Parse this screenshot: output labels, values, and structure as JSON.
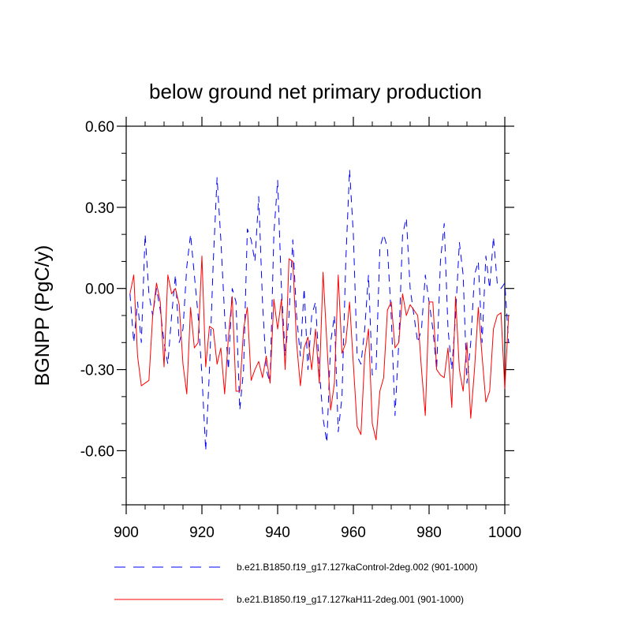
{
  "chart_data": {
    "type": "line",
    "title": "below ground net primary production",
    "xlabel": "",
    "ylabel": "BGNPP  (PgC/y)",
    "xlim": [
      900,
      1000
    ],
    "ylim": [
      -0.8,
      0.6
    ],
    "x_ticks": [
      900,
      920,
      940,
      960,
      980,
      1000
    ],
    "x_tick_labels": [
      "900",
      "920",
      "940",
      "960",
      "980",
      "1000"
    ],
    "y_ticks": [
      0.6,
      0.3,
      0.0,
      -0.3,
      -0.6
    ],
    "y_tick_labels": [
      "0.60",
      "0.30",
      "0.00",
      "-0.30",
      "-0.60"
    ],
    "x_start": 901,
    "series": [
      {
        "name": "b.e21.B1850.f19_g17.127kaControl-2deg.002 (901-1000)",
        "color": "#0000ff",
        "dash": "dashed",
        "values": [
          -0.02,
          -0.2,
          -0.05,
          -0.2,
          0.2,
          -0.02,
          -0.1,
          0.0,
          -0.08,
          -0.2,
          -0.28,
          -0.1,
          0.05,
          -0.2,
          -0.15,
          0.08,
          0.2,
          0.05,
          -0.1,
          -0.32,
          -0.6,
          -0.3,
          0.1,
          0.41,
          0.18,
          -0.1,
          -0.3,
          0.0,
          -0.05,
          -0.45,
          -0.3,
          0.22,
          0.18,
          0.1,
          0.34,
          -0.05,
          -0.3,
          -0.35,
          0.2,
          0.4,
          0.0,
          -0.25,
          -0.1,
          0.18,
          -0.1,
          -0.25,
          0.0,
          -0.3,
          -0.1,
          -0.05,
          -0.3,
          -0.48,
          -0.57,
          -0.2,
          -0.1,
          -0.53,
          -0.4,
          0.1,
          0.44,
          0.2,
          -0.25,
          -0.28,
          -0.15,
          0.05,
          -0.32,
          -0.3,
          0.15,
          0.2,
          0.15,
          -0.1,
          -0.47,
          -0.2,
          0.2,
          0.26,
          0.0,
          -0.1,
          -0.2,
          -0.15,
          0.05,
          -0.05,
          -0.15,
          -0.3,
          0.1,
          0.24,
          -0.15,
          -0.3,
          -0.1,
          0.17,
          0.05,
          -0.35,
          -0.2,
          0.05,
          0.1,
          -0.2,
          0.12,
          0.0,
          0.19,
          0.02,
          0.0,
          0.02,
          -0.2
        ]
      },
      {
        "name": "b.e21.B1850.f19_g17.127kaH11-2deg.001 (901-1000)",
        "color": "#ff0000",
        "dash": "solid",
        "values": [
          -0.02,
          0.05,
          -0.25,
          -0.36,
          -0.35,
          -0.34,
          -0.1,
          0.02,
          -0.05,
          -0.29,
          0.05,
          -0.02,
          0.0,
          -0.06,
          -0.28,
          -0.39,
          -0.07,
          -0.22,
          -0.2,
          0.12,
          -0.29,
          -0.14,
          -0.15,
          -0.28,
          -0.22,
          -0.39,
          -0.18,
          -0.03,
          -0.38,
          -0.38,
          -0.15,
          -0.07,
          -0.34,
          -0.3,
          -0.27,
          -0.33,
          -0.25,
          -0.35,
          -0.04,
          -0.15,
          -0.04,
          -0.3,
          0.11,
          0.1,
          -0.2,
          -0.36,
          -0.22,
          -0.18,
          -0.3,
          -0.15,
          -0.35,
          0.06,
          -0.2,
          -0.45,
          -0.35,
          0.05,
          -0.24,
          -0.2,
          -0.05,
          -0.28,
          -0.51,
          -0.54,
          -0.25,
          -0.15,
          -0.5,
          -0.56,
          -0.38,
          -0.33,
          -0.08,
          -0.05,
          -0.22,
          -0.2,
          -0.02,
          -0.1,
          -0.06,
          -0.08,
          -0.1,
          -0.3,
          -0.47,
          -0.05,
          -0.05,
          -0.3,
          -0.32,
          -0.33,
          -0.22,
          -0.44,
          -0.03,
          -0.3,
          -0.38,
          -0.2,
          -0.48,
          -0.3,
          -0.07,
          -0.25,
          -0.42,
          -0.38,
          -0.15,
          -0.1,
          -0.09,
          -0.37,
          -0.1
        ]
      }
    ],
    "legend": {
      "placement": "bottom",
      "entries": [
        "b.e21.B1850.f19_g17.127kaControl-2deg.002 (901-1000)",
        "b.e21.B1850.f19_g17.127kaH11-2deg.001 (901-1000)"
      ]
    }
  }
}
